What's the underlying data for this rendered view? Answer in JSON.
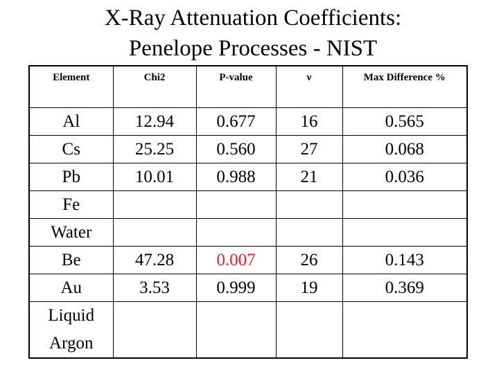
{
  "title": {
    "line1": "X-Ray Attenuation Coefficients:",
    "line2": "Penelope Processes - NIST"
  },
  "table": {
    "headers": [
      "Element",
      "Chi2",
      "P-value",
      "ν",
      "Max Difference %"
    ],
    "rows": [
      {
        "element": "Al",
        "chi2": "12.94",
        "pvalue": "0.677",
        "nu": "16",
        "maxdiff": "0.565"
      },
      {
        "element": "Cs",
        "chi2": "25.25",
        "pvalue": "0.560",
        "nu": "27",
        "maxdiff": "0.068"
      },
      {
        "element": "Pb",
        "chi2": "10.01",
        "pvalue": "0.988",
        "nu": "21",
        "maxdiff": "0.036"
      },
      {
        "element": "Fe",
        "chi2": "",
        "pvalue": "",
        "nu": "",
        "maxdiff": ""
      },
      {
        "element": "Water",
        "chi2": "",
        "pvalue": "",
        "nu": "",
        "maxdiff": ""
      },
      {
        "element": "Be",
        "chi2": "47.28",
        "pvalue": "0.007",
        "nu": "26",
        "maxdiff": "0.143"
      },
      {
        "element": "Au",
        "chi2": "3.53",
        "pvalue": "0.999",
        "nu": "19",
        "maxdiff": "0.369"
      },
      {
        "element": "Liquid\nArgon",
        "chi2": "",
        "pvalue": "",
        "nu": "",
        "maxdiff": ""
      }
    ],
    "highlight_color": "#e4202a"
  }
}
